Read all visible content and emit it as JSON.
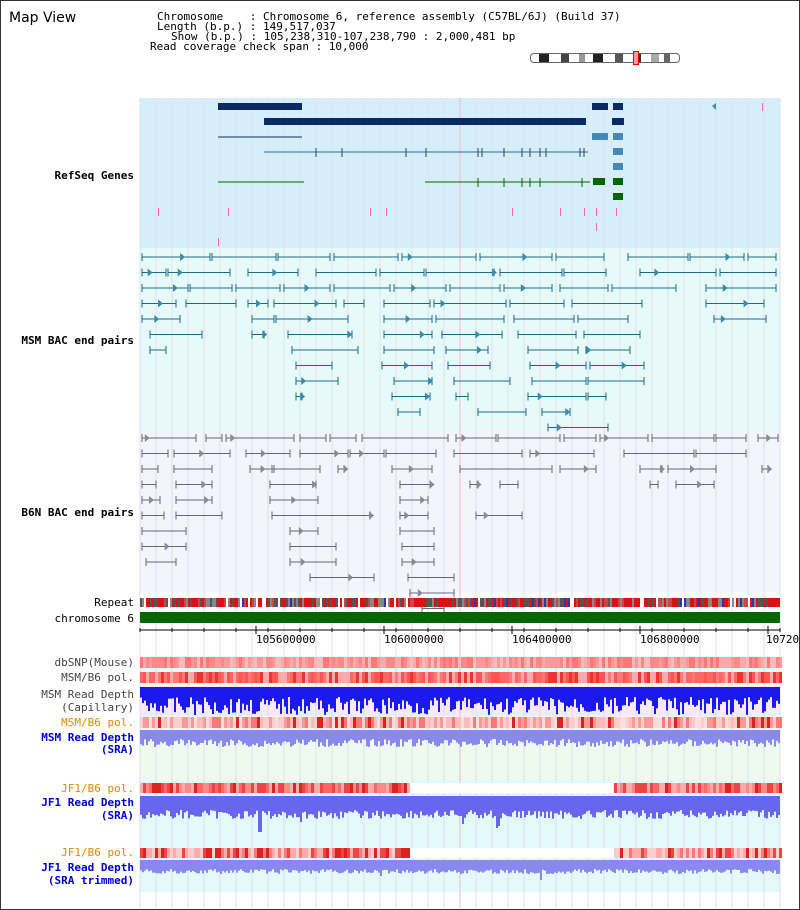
{
  "view": {
    "title": "Map View",
    "chromosome_label": "Chromosome    : Chromosome 6, reference assembly (C57BL/6J) (Build 37)",
    "length_label": "Length (b.p.) : 149,517,037",
    "show_label": "Show (b.p.) : 105,238,310-107,238,790 : 2,000,481 bp",
    "coverage_label": "Read coverage check span : 10,000"
  },
  "tracks": {
    "refseq": "RefSeq Genes",
    "msm_bac": "MSM BAC end pairs",
    "b6n_bac": "B6N BAC end pairs",
    "repeat": "Repeat",
    "chromosome": "chromosome 6",
    "dbsnp": "dbSNP(Mouse)",
    "msm_b6_pol_1": "MSM/B6 pol.",
    "msm_depth_cap_1": "MSM Read Depth",
    "msm_depth_cap_2": "(Capillary)",
    "msm_b6_pol_2": "MSM/B6 pol.",
    "msm_depth_sra_1": "MSM Read Depth",
    "msm_depth_sra_2": "(SRA)",
    "jf1_b6_pol_1": "JF1/B6 pol.",
    "jf1_depth_sra_1": "JF1 Read Depth",
    "jf1_depth_sra_2": "(SRA)",
    "jf1_b6_pol_2": "JF1/B6 pol.",
    "jf1_depth_trim_1": "JF1 Read Depth",
    "jf1_depth_trim_2": "(SRA trimmed)"
  },
  "axis": {
    "ticks": [
      "105600000",
      "106000000",
      "106400000",
      "106800000",
      "10720"
    ]
  },
  "colors": {
    "refseq_label": "#0000aa",
    "msm_label": "#006688",
    "b6n_label": "#555566",
    "pol_orange": "#e08800",
    "depth_blue": "#0000cc"
  }
}
